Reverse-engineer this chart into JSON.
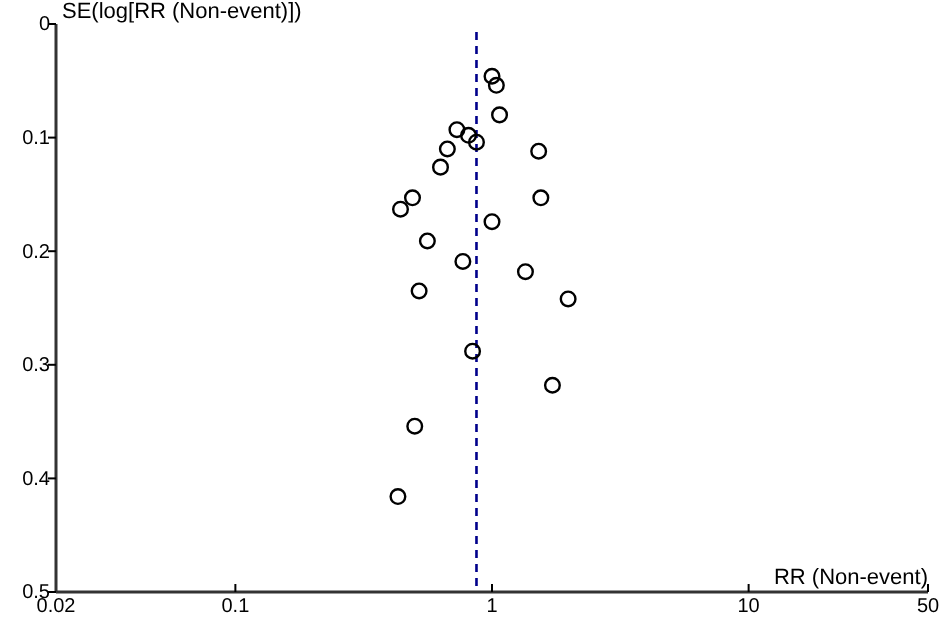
{
  "chart_data": {
    "type": "scatter",
    "xlabel": "RR (Non-event)",
    "ylabel": "SE(log[RR (Non-event)])",
    "log": "x",
    "marker": "circle",
    "grid": false,
    "xlim": [
      0.02,
      50
    ],
    "xticks": [
      0.02,
      0.1,
      1,
      10,
      50
    ],
    "ylim": [
      0.5,
      0
    ],
    "yticks": [
      0,
      0.1,
      0.2,
      0.3,
      0.4,
      0.5
    ],
    "x": [
      1.0,
      1.04,
      1.07,
      0.73,
      0.81,
      0.87,
      0.67,
      1.52,
      0.63,
      0.49,
      0.44,
      1.55,
      1.0,
      0.56,
      0.77,
      1.35,
      0.52,
      1.98,
      0.84,
      1.72,
      0.5,
      0.43
    ],
    "series": [
      {
        "color": "#000000",
        "values": [
          0.046,
          0.054,
          0.08,
          0.093,
          0.098,
          0.104,
          0.11,
          0.112,
          0.126,
          0.153,
          0.163,
          0.153,
          0.174,
          0.191,
          0.209,
          0.218,
          0.235,
          0.242,
          0.288,
          0.318,
          0.354,
          0.416
        ]
      }
    ],
    "ref_lines": [
      {
        "axis": "x",
        "value": 0.87,
        "color": "#00008b",
        "line_style": "dashed"
      }
    ]
  }
}
